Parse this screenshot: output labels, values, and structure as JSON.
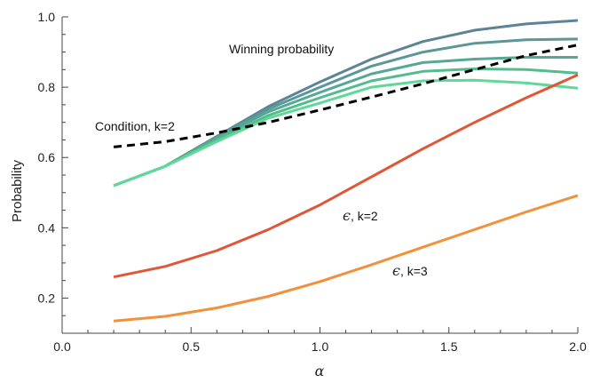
{
  "chart_data": {
    "type": "line",
    "xlabel": "α",
    "ylabel": "Probability",
    "xlim": [
      0.0,
      2.0
    ],
    "ylim": [
      0.1,
      1.0
    ],
    "x_ticks": [
      "0.0",
      "0.5",
      "1.0",
      "1.5",
      "2.0"
    ],
    "y_ticks": [
      "0.2",
      "0.4",
      "0.6",
      "0.8",
      "1.0"
    ],
    "x_tick_values": [
      0.0,
      0.5,
      1.0,
      1.5,
      2.0
    ],
    "y_tick_values": [
      0.2,
      0.4,
      0.6,
      0.8,
      1.0
    ],
    "x": [
      0.2,
      0.4,
      0.6,
      0.8,
      1.0,
      1.2,
      1.4,
      1.6,
      1.8,
      2.0
    ],
    "grid": false,
    "series": [
      {
        "group": "winning",
        "color": "#5c8496",
        "dashed": false,
        "values": [
          0.52,
          0.575,
          0.66,
          0.745,
          0.815,
          0.88,
          0.93,
          0.962,
          0.98,
          0.99
        ]
      },
      {
        "group": "winning",
        "color": "#5b9699",
        "dashed": false,
        "values": [
          0.52,
          0.575,
          0.66,
          0.738,
          0.8,
          0.86,
          0.9,
          0.925,
          0.935,
          0.937
        ]
      },
      {
        "group": "winning",
        "color": "#55a894",
        "dashed": false,
        "values": [
          0.52,
          0.575,
          0.655,
          0.73,
          0.785,
          0.838,
          0.87,
          0.88,
          0.885,
          0.885
        ]
      },
      {
        "group": "winning",
        "color": "#53bb8e",
        "dashed": false,
        "values": [
          0.52,
          0.575,
          0.65,
          0.72,
          0.77,
          0.818,
          0.845,
          0.852,
          0.85,
          0.84
        ]
      },
      {
        "group": "winning",
        "color": "#5fd898",
        "dashed": false,
        "values": [
          0.52,
          0.575,
          0.645,
          0.712,
          0.755,
          0.8,
          0.818,
          0.82,
          0.812,
          0.797
        ]
      },
      {
        "group": "condition",
        "color": "#000000",
        "dashed": true,
        "values": [
          0.63,
          0.645,
          0.67,
          0.7,
          0.735,
          0.772,
          0.81,
          0.85,
          0.89,
          0.92
        ]
      },
      {
        "group": "epsilon_k2",
        "color": "#e05738",
        "dashed": false,
        "values": [
          0.26,
          0.29,
          0.335,
          0.395,
          0.465,
          0.545,
          0.625,
          0.7,
          0.77,
          0.835
        ]
      },
      {
        "group": "epsilon_k3",
        "color": "#f2903c",
        "dashed": false,
        "values": [
          0.135,
          0.148,
          0.172,
          0.205,
          0.247,
          0.295,
          0.345,
          0.395,
          0.445,
          0.492
        ]
      }
    ],
    "annotations": {
      "winning": "Winning probability",
      "condition": "Condition, k=2",
      "eps_k2_sym": "ϵ",
      "eps_k2_text": ", k=2",
      "eps_k3_sym": "ϵ",
      "eps_k3_text": ", k=3"
    }
  }
}
